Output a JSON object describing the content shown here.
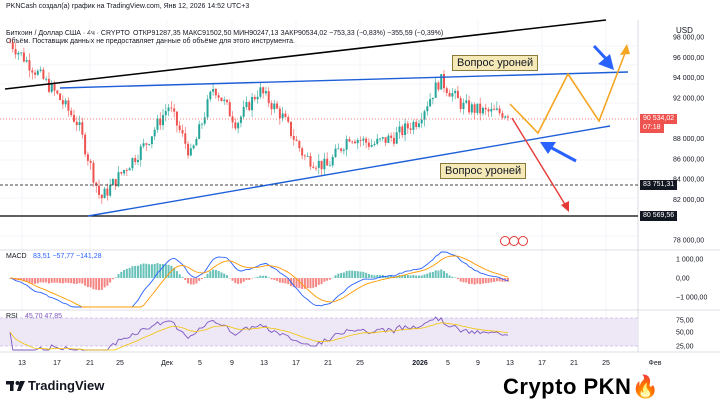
{
  "header": {
    "line1": "PKNCash создал(а) график на TradingView.com, Янв 12, 2026 14:52 UTC+3",
    "symbol": "Биткоин / Доллар США · 4ч · CRYPTO",
    "ohlc": "ОТКР91287,35  МАКС91502,50  МИН90247,13  ЗАКР90534,02  −753,33 (−0,83%)  −355,59 (−0,39%)",
    "volume_note": "Объём. Поставщик данных не предоставляет данные об объёме для этого инструмента."
  },
  "currency_label": "USD",
  "annotations": {
    "top_label": "Вопрос уроней",
    "bottom_label": "Вопрос уроней"
  },
  "price_labels": {
    "current": "90 534,02",
    "countdown": "07:18",
    "level_1": "83 751,31",
    "level_2": "80 569,56"
  },
  "indicators": {
    "macd_label": "MACD",
    "macd_values": "83,51  −57,77  −141,28",
    "rsi_label": "RSI",
    "rsi_values": "45,70  47,85"
  },
  "footer": {
    "tradingview": "TradingView",
    "brand": "Crypto PKN🔥"
  },
  "colors": {
    "up": "#26a69a",
    "down": "#ef5350",
    "trend_blue": "#1e5fd8",
    "channel_black": "#000000",
    "scenario_orange": "#f5a623",
    "scenario_red": "#e53935",
    "arrow_blue": "#2962ff",
    "macd": "#2962ff",
    "signal": "#ff9800",
    "rsi": "#7e57c2"
  },
  "chart_data": {
    "type": "candlestick",
    "y_axis_ticks": [
      "98 000,00",
      "96 000,00",
      "94 000,00",
      "92 000,00",
      "88 000,00",
      "86 000,00",
      "84 000,00",
      "82 000,00",
      "78 000,00"
    ],
    "ylim": [
      77000,
      99500
    ],
    "x_ticks": [
      "13",
      "17",
      "21",
      "25",
      "Дек",
      "5",
      "9",
      "13",
      "17",
      "21",
      "25",
      "2026",
      "5",
      "9",
      "13",
      "17",
      "21",
      "25",
      "Фев"
    ],
    "levels": [
      83751.31,
      80569.56
    ],
    "current_price": 90534.02,
    "approx_path": [
      {
        "x": "Nov 12",
        "y": 97500
      },
      {
        "x": "Nov 14",
        "y": 95000
      },
      {
        "x": "Nov 17",
        "y": 92500
      },
      {
        "x": "Nov 19",
        "y": 89500
      },
      {
        "x": "Nov 21",
        "y": 82000
      },
      {
        "x": "Nov 22",
        "y": 84800
      },
      {
        "x": "Nov 25",
        "y": 87500
      },
      {
        "x": "Nov 28",
        "y": 91200
      },
      {
        "x": "Dec 1",
        "y": 86300
      },
      {
        "x": "Dec 3",
        "y": 93200
      },
      {
        "x": "Dec 6",
        "y": 89500
      },
      {
        "x": "Dec 9",
        "y": 92800
      },
      {
        "x": "Dec 12",
        "y": 90300
      },
      {
        "x": "Dec 15",
        "y": 86200
      },
      {
        "x": "Dec 18",
        "y": 85200
      },
      {
        "x": "Dec 21",
        "y": 88300
      },
      {
        "x": "Dec 25",
        "y": 87400
      },
      {
        "x": "Dec 29",
        "y": 88200
      },
      {
        "x": "Jan 2",
        "y": 89800
      },
      {
        "x": "Jan 5",
        "y": 93800
      },
      {
        "x": "Jan 7",
        "y": 91200
      },
      {
        "x": "Jan 9",
        "y": 90600
      },
      {
        "x": "Jan 12",
        "y": 90534
      }
    ],
    "macd": {
      "ticks": [
        "1 000,00",
        "0,00",
        "−1 000,00"
      ],
      "values": [
        83.51,
        -57.77,
        -141.28
      ]
    },
    "rsi": {
      "ticks": [
        "75,00",
        "50,00",
        "25,00"
      ],
      "values": [
        45.7,
        47.85
      ]
    }
  }
}
